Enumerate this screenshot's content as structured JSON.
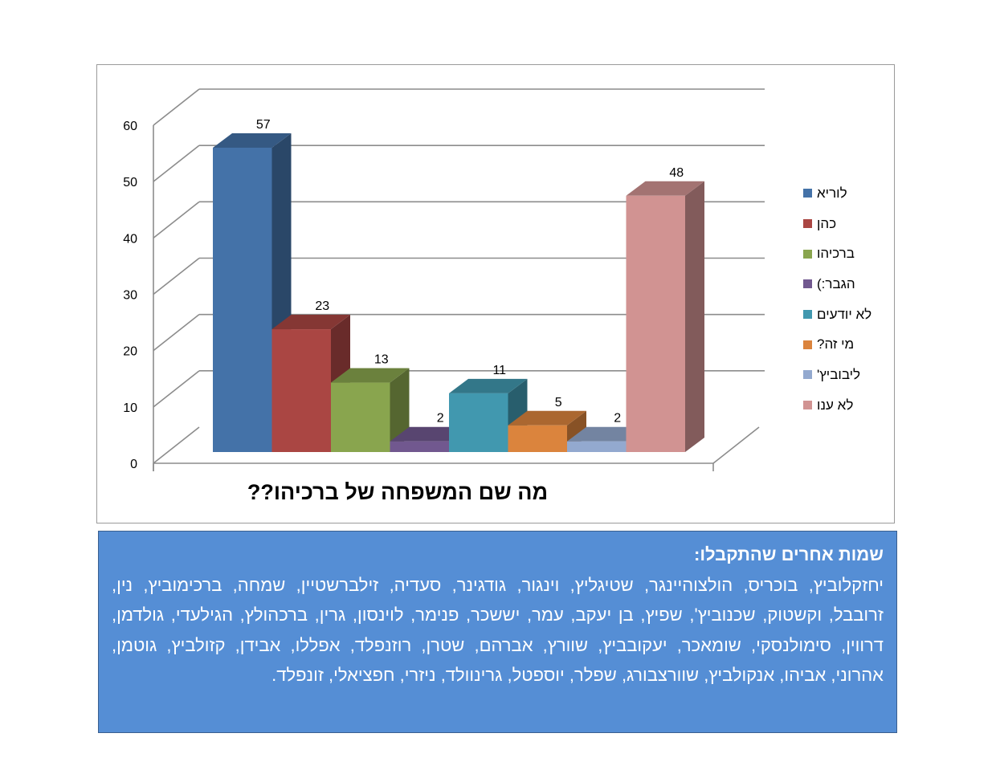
{
  "chart_data": {
    "type": "bar",
    "title": "מה שם המשפחה של ברכיהו??",
    "xlabel": "",
    "ylabel": "",
    "ylim": [
      0,
      60
    ],
    "yticks": [
      0,
      10,
      20,
      30,
      40,
      50,
      60
    ],
    "grid": true,
    "three_d": true,
    "legend_position": "right",
    "series": [
      {
        "name": "לוריא",
        "value": 57,
        "color": "#4472a8"
      },
      {
        "name": "כהן",
        "value": 23,
        "color": "#aa4643"
      },
      {
        "name": "ברכיהו",
        "value": 13,
        "color": "#89a54e"
      },
      {
        "name": "הגבר:)",
        "value": 2,
        "color": "#71588f"
      },
      {
        "name": "לא יודעים",
        "value": 11,
        "color": "#4198af"
      },
      {
        "name": "מי זה?",
        "value": 5,
        "color": "#db843d"
      },
      {
        "name": "ליבוביץ'",
        "value": 2,
        "color": "#93a9cf"
      },
      {
        "name": "לא ענו",
        "value": 48,
        "color": "#d19392"
      }
    ]
  },
  "text_box": {
    "title": "שמות אחרים שהתקבלו:",
    "body": "יחזקלוביץ, בוכריס, הולצוהיינגר, שטיגליץ, וינגור, גודגינר, סעדיה, זילברשטיין, שמחה, ברכימוביץ, נין, זרובבל, וקשטוק, שכנוביץ', שפיץ, בן יעקב, עמר, יששכר, פנימר, לוינסון, גרין, ברכהולץ, הגילעדי, גולדמן, דרווין, סימולנסקי, שומאכר, יעקובביץ, שוורץ, אברהם, שטרן, רוזנפלד, אפללו, אבידן, קזולביץ, גוטמן, אהרוני, אביהו, אנקולביץ, שוורצבורג, שפלר, יוספטל, גרינוולד, ניזרי, חפציאלי, זונפלד.",
    "background": "#558ed5"
  }
}
